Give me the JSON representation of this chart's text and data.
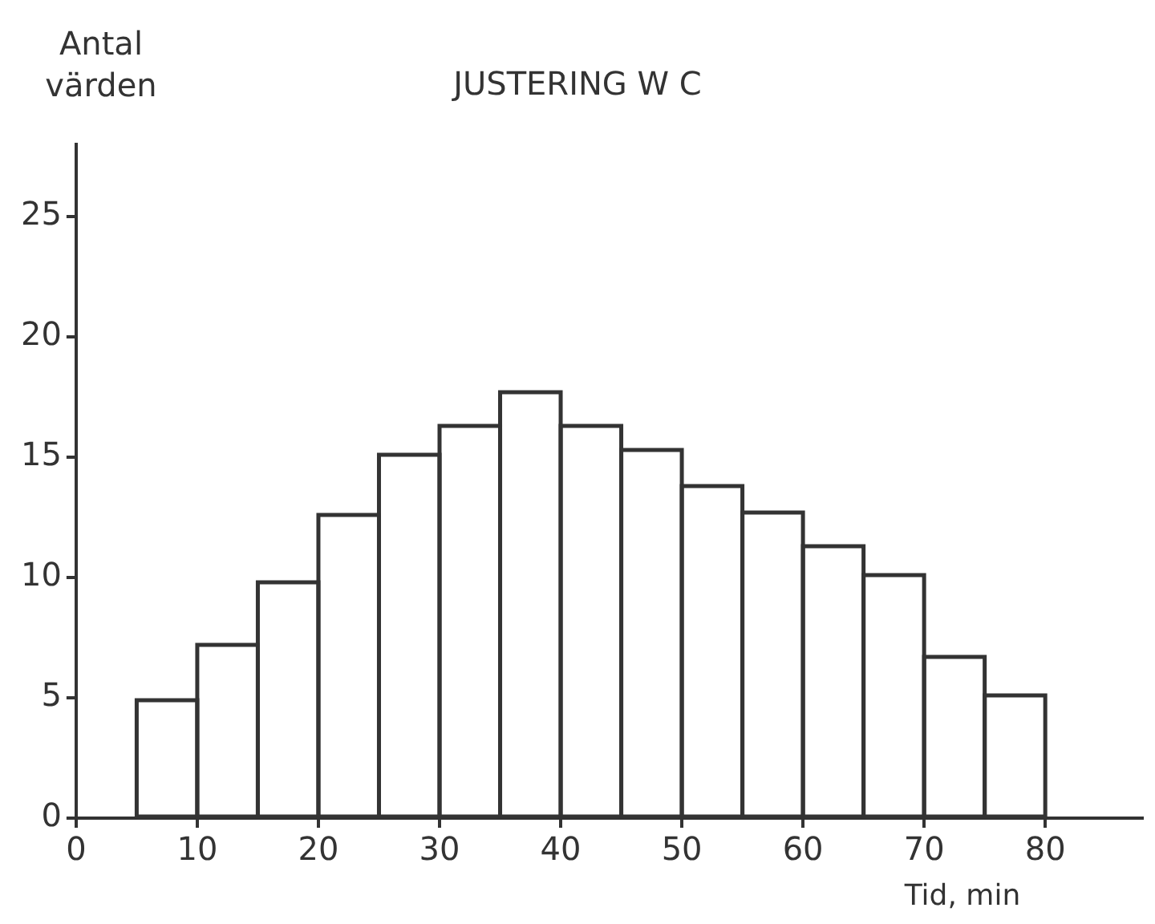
{
  "chart_data": {
    "type": "histogram",
    "title": "JUSTERING W C",
    "ylabel": "Antal värden",
    "xlabel": "Tid, min",
    "bins": [
      5,
      10,
      15,
      20,
      25,
      30,
      35,
      40,
      45,
      50,
      55,
      60,
      65,
      70,
      75,
      80
    ],
    "values": [
      4.9,
      7.2,
      9.8,
      12.6,
      15.1,
      16.3,
      17.7,
      16.3,
      15.3,
      13.8,
      12.7,
      11.3,
      10.1,
      6.7,
      5.1
    ],
    "color": "#333333",
    "xlim": [
      0,
      88
    ],
    "xticks": [
      0,
      10,
      20,
      30,
      40,
      50,
      60,
      70,
      80
    ],
    "ylim": [
      0,
      28
    ],
    "yticks": [
      0,
      5,
      10,
      15,
      20,
      25
    ],
    "grid": false,
    "legend": false
  }
}
